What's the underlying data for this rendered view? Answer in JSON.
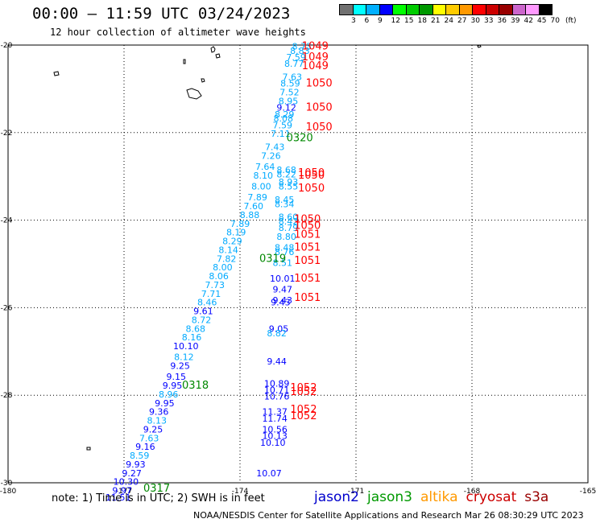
{
  "header": {
    "title": "00:00 — 11:59 UTC 03/24/2023",
    "subtitle": "12 hour collection of altimeter wave heights"
  },
  "colorbar": {
    "colors": [
      "#707070",
      "#00ffff",
      "#00b0ff",
      "#0000ff",
      "#00ff00",
      "#00cc00",
      "#009900",
      "#ffff00",
      "#ffcc00",
      "#ff9900",
      "#ff0000",
      "#cc0000",
      "#990000",
      "#cc66cc",
      "#ff99ff",
      "#000000"
    ],
    "labels": [
      "3",
      "6",
      "9",
      "12",
      "15",
      "18",
      "21",
      "24",
      "27",
      "30",
      "33",
      "36",
      "39",
      "42",
      "45",
      "70"
    ],
    "unit": "(ft)"
  },
  "footer": {
    "note": "note:  1) Time is in UTC;  2) SWH is in feet",
    "satellites": [
      {
        "name": "jason2",
        "color": "#0000cc"
      },
      {
        "name": "jason3",
        "color": "#009900"
      },
      {
        "name": "altika",
        "color": "#ff9900"
      },
      {
        "name": "cryosat",
        "color": "#cc0000"
      },
      {
        "name": "s3a",
        "color": "#990000"
      }
    ],
    "credit": "NOAA/NESDIS Center for Satellite Applications and Research    Mar 26 08:30:29 UTC 2023"
  },
  "chart_data": {
    "type": "scatter",
    "title": "00:00 — 11:59 UTC 03/24/2023",
    "xlim": [
      -180,
      -165
    ],
    "ylim": [
      -30,
      -20
    ],
    "xticks": [
      "-180",
      "-177",
      "-174",
      "-171",
      "-168",
      "-165"
    ],
    "yticks": [
      "-20",
      "-22",
      "-24",
      "-26",
      "-28",
      "-30"
    ],
    "grid": true,
    "series": [
      {
        "name": "jason2",
        "color_by_value": true,
        "points": [
          {
            "lon": -172.4,
            "lat": -20.1,
            "swh": "8.73"
          },
          {
            "lon": -172.45,
            "lat": -20.2,
            "swh": "8.83"
          },
          {
            "lon": -172.55,
            "lat": -20.35,
            "swh": "7.59"
          },
          {
            "lon": -172.6,
            "lat": -20.5,
            "swh": "8.77"
          },
          {
            "lon": -172.65,
            "lat": -20.8,
            "swh": "7.63"
          },
          {
            "lon": -172.7,
            "lat": -20.95,
            "swh": "8.59"
          },
          {
            "lon": -172.72,
            "lat": -21.15,
            "swh": "7.52"
          },
          {
            "lon": -172.75,
            "lat": -21.35,
            "swh": "8.95"
          },
          {
            "lon": -172.8,
            "lat": -21.5,
            "swh": "9.12"
          },
          {
            "lon": -172.85,
            "lat": -21.65,
            "swh": "8.29"
          },
          {
            "lon": -172.88,
            "lat": -21.75,
            "swh": "8.08"
          },
          {
            "lon": -172.9,
            "lat": -21.9,
            "swh": "7.59"
          },
          {
            "lon": -172.95,
            "lat": -22.1,
            "swh": "7.11"
          },
          {
            "lon": -173.1,
            "lat": -22.4,
            "swh": "7.43"
          },
          {
            "lon": -173.2,
            "lat": -22.6,
            "swh": "7.26"
          },
          {
            "lon": -173.35,
            "lat": -22.85,
            "swh": "7.64"
          },
          {
            "lon": -173.4,
            "lat": -23.05,
            "swh": "8.10"
          },
          {
            "lon": -173.45,
            "lat": -23.3,
            "swh": "8.00"
          },
          {
            "lon": -173.55,
            "lat": -23.55,
            "swh": "7.89"
          },
          {
            "lon": -173.65,
            "lat": -23.75,
            "swh": "7.60"
          },
          {
            "lon": -173.75,
            "lat": -23.95,
            "swh": "8.88"
          },
          {
            "lon": -174.0,
            "lat": -24.15,
            "swh": "7.89"
          },
          {
            "lon": -174.1,
            "lat": -24.35,
            "swh": "8.19"
          },
          {
            "lon": -174.2,
            "lat": -24.55,
            "swh": "8.29"
          },
          {
            "lon": -174.3,
            "lat": -24.75,
            "swh": "8.14"
          },
          {
            "lon": -174.35,
            "lat": -24.95,
            "swh": "7.82"
          },
          {
            "lon": -174.45,
            "lat": -25.15,
            "swh": "8.00"
          },
          {
            "lon": -174.55,
            "lat": -25.35,
            "swh": "8.06"
          },
          {
            "lon": -174.65,
            "lat": -25.55,
            "swh": "7.73"
          },
          {
            "lon": -174.75,
            "lat": -25.75,
            "swh": "7.71"
          },
          {
            "lon": -174.85,
            "lat": -25.95,
            "swh": "8.46"
          },
          {
            "lon": -174.95,
            "lat": -26.15,
            "swh": "9.61"
          },
          {
            "lon": -175.0,
            "lat": -26.35,
            "swh": "8.72"
          },
          {
            "lon": -175.15,
            "lat": -26.55,
            "swh": "8.68"
          },
          {
            "lon": -175.25,
            "lat": -26.75,
            "swh": "8.16"
          },
          {
            "lon": -175.4,
            "lat": -26.95,
            "swh": "10.10"
          },
          {
            "lon": -175.45,
            "lat": -27.2,
            "swh": "8.12"
          },
          {
            "lon": -175.55,
            "lat": -27.4,
            "swh": "9.25"
          },
          {
            "lon": -175.65,
            "lat": -27.65,
            "swh": "9.15"
          },
          {
            "lon": -175.75,
            "lat": -27.85,
            "swh": "9.95"
          },
          {
            "lon": -175.85,
            "lat": -28.05,
            "swh": "8.96"
          },
          {
            "lon": -175.95,
            "lat": -28.25,
            "swh": "9.95"
          },
          {
            "lon": -176.1,
            "lat": -28.45,
            "swh": "9.36"
          },
          {
            "lon": -176.15,
            "lat": -28.65,
            "swh": "8.13"
          },
          {
            "lon": -176.25,
            "lat": -28.85,
            "swh": "9.25"
          },
          {
            "lon": -176.35,
            "lat": -29.05,
            "swh": "7.63"
          },
          {
            "lon": -176.45,
            "lat": -29.25,
            "swh": "9.16"
          },
          {
            "lon": -176.6,
            "lat": -29.45,
            "swh": "8.59"
          },
          {
            "lon": -176.7,
            "lat": -29.65,
            "swh": "9.93"
          },
          {
            "lon": -176.8,
            "lat": -29.85,
            "swh": "9.27"
          },
          {
            "lon": -176.95,
            "lat": -30.05,
            "swh": "10.30"
          },
          {
            "lon": -177.05,
            "lat": -30.25,
            "swh": "9.97"
          },
          {
            "lon": -177.15,
            "lat": -30.4,
            "swh": "11.51"
          },
          {
            "lon": -172.8,
            "lat": -22.92,
            "swh": "8.68"
          },
          {
            "lon": -172.8,
            "lat": -23.02,
            "swh": "8.22"
          },
          {
            "lon": -172.75,
            "lat": -23.2,
            "swh": "8.93"
          },
          {
            "lon": -172.75,
            "lat": -23.3,
            "swh": "8.55"
          },
          {
            "lon": -172.85,
            "lat": -23.6,
            "swh": "8.45"
          },
          {
            "lon": -172.85,
            "lat": -23.7,
            "swh": "8.34"
          },
          {
            "lon": -172.75,
            "lat": -24.0,
            "swh": "8.60"
          },
          {
            "lon": -172.75,
            "lat": -24.1,
            "swh": "8.42"
          },
          {
            "lon": -172.75,
            "lat": -24.25,
            "swh": "8.79"
          },
          {
            "lon": -172.8,
            "lat": -24.45,
            "swh": "8.80"
          },
          {
            "lon": -172.85,
            "lat": -24.7,
            "swh": "8.48"
          },
          {
            "lon": -172.85,
            "lat": -24.8,
            "swh": "8.76"
          },
          {
            "lon": -172.9,
            "lat": -25.05,
            "swh": "8.51"
          },
          {
            "lon": -172.9,
            "lat": -25.4,
            "swh": "10.01"
          },
          {
            "lon": -172.9,
            "lat": -25.65,
            "swh": "9.47"
          },
          {
            "lon": -172.9,
            "lat": -25.9,
            "swh": "9.43"
          },
          {
            "lon": -172.95,
            "lat": -25.95,
            "swh": "9.43"
          },
          {
            "lon": -173.0,
            "lat": -26.55,
            "swh": "9.05"
          },
          {
            "lon": -173.05,
            "lat": -26.65,
            "swh": "8.82"
          },
          {
            "lon": -173.05,
            "lat": -27.3,
            "swh": "9.44"
          },
          {
            "lon": -173.05,
            "lat": -27.8,
            "swh": "10.89"
          },
          {
            "lon": -173.05,
            "lat": -27.95,
            "swh": "10.71"
          },
          {
            "lon": -173.05,
            "lat": -28.1,
            "swh": "10.76"
          },
          {
            "lon": -173.1,
            "lat": -28.45,
            "swh": "11.37"
          },
          {
            "lon": -173.1,
            "lat": -28.6,
            "swh": "11.74"
          },
          {
            "lon": -173.1,
            "lat": -28.85,
            "swh": "10.56"
          },
          {
            "lon": -173.1,
            "lat": -29.0,
            "swh": "10.13"
          },
          {
            "lon": -173.15,
            "lat": -29.15,
            "swh": "10.10"
          },
          {
            "lon": -173.25,
            "lat": -29.85,
            "swh": "10.07"
          }
        ]
      },
      {
        "name": "time-labels",
        "points": [
          {
            "lon": -172.4,
            "lat": -20.1,
            "label": "1049",
            "color": "#ff0000"
          },
          {
            "lon": -172.4,
            "lat": -20.35,
            "label": "1049",
            "color": "#ff0000"
          },
          {
            "lon": -172.4,
            "lat": -20.55,
            "label": "1049",
            "color": "#ff0000"
          },
          {
            "lon": -172.3,
            "lat": -20.95,
            "label": "1050",
            "color": "#ff0000"
          },
          {
            "lon": -172.3,
            "lat": -21.5,
            "label": "1050",
            "color": "#ff0000"
          },
          {
            "lon": -172.3,
            "lat": -21.95,
            "label": "1050",
            "color": "#ff0000"
          },
          {
            "lon": -172.8,
            "lat": -22.2,
            "label": "0320",
            "color": "#008800"
          },
          {
            "lon": -172.5,
            "lat": -23.0,
            "label": "1050",
            "color": "#ff0000"
          },
          {
            "lon": -172.5,
            "lat": -23.05,
            "label": "1050",
            "color": "#ff0000"
          },
          {
            "lon": -172.5,
            "lat": -23.35,
            "label": "1050",
            "color": "#ff0000"
          },
          {
            "lon": -172.6,
            "lat": -24.05,
            "label": "1050",
            "color": "#ff0000"
          },
          {
            "lon": -172.6,
            "lat": -24.2,
            "label": "1050",
            "color": "#ff0000"
          },
          {
            "lon": -172.6,
            "lat": -24.4,
            "label": "1051",
            "color": "#ff0000"
          },
          {
            "lon": -172.6,
            "lat": -24.7,
            "label": "1051",
            "color": "#ff0000"
          },
          {
            "lon": -172.6,
            "lat": -25.0,
            "label": "1051",
            "color": "#ff0000"
          },
          {
            "lon": -172.6,
            "lat": -25.4,
            "label": "1051",
            "color": "#ff0000"
          },
          {
            "lon": -172.6,
            "lat": -25.85,
            "label": "1051",
            "color": "#ff0000"
          },
          {
            "lon": -173.5,
            "lat": -24.95,
            "label": "0319",
            "color": "#008800"
          },
          {
            "lon": -172.7,
            "lat": -27.9,
            "label": "1052",
            "color": "#ff0000"
          },
          {
            "lon": -172.7,
            "lat": -28.0,
            "label": "1052",
            "color": "#ff0000"
          },
          {
            "lon": -172.7,
            "lat": -28.4,
            "label": "1052",
            "color": "#ff0000"
          },
          {
            "lon": -172.7,
            "lat": -28.55,
            "label": "1052",
            "color": "#ff0000"
          },
          {
            "lon": -175.5,
            "lat": -27.85,
            "label": "0318",
            "color": "#008800"
          },
          {
            "lon": -176.5,
            "lat": -30.2,
            "label": "0317",
            "color": "#008800"
          }
        ]
      }
    ]
  }
}
